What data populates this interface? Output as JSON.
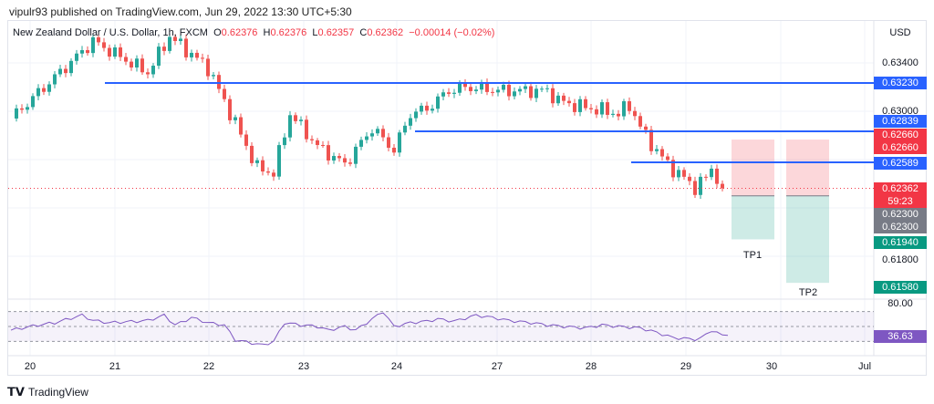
{
  "header": {
    "published": "vipulr93 published on TradingView.com, Jun 29, 2022 13:30 UTC+5:30"
  },
  "legend": {
    "symbol": "New Zealand Dollar / U.S. Dollar, 1h, FXCM",
    "o_label": "O",
    "o": "0.62376",
    "h_label": "H",
    "h": "0.62376",
    "l_label": "L",
    "l": "0.62357",
    "c_label": "C",
    "c": "0.62362",
    "change": "−0.00014 (−0.02%)"
  },
  "axis": {
    "currency": "USD",
    "ticks": [
      "0.63400",
      "0.63000",
      "0.61800"
    ],
    "rsi_tick": "80.00"
  },
  "tags": {
    "r1": "0.63230",
    "r2": "0.62839",
    "r3a": "0.62660",
    "r3b": "0.62660",
    "r4": "0.62589",
    "price": "0.62362",
    "countdown": "59:23",
    "e1": "0.62300",
    "e2": "0.62300",
    "tp1": "0.61940",
    "tp2": "0.61580",
    "rsi": "36.63"
  },
  "annotations": {
    "tp1": "TP1",
    "tp2": "TP2"
  },
  "footer": {
    "brand": "TradingView"
  },
  "colors": {
    "up": "#26a69a",
    "down": "#ef5350",
    "level": "#2962ff",
    "rsi": "#7e57c2"
  },
  "chart_data": {
    "type": "candlestick",
    "title": "New Zealand Dollar / U.S. Dollar, 1h, FXCM",
    "x_ticks": [
      "20",
      "21",
      "22",
      "23",
      "24",
      "27",
      "28",
      "29",
      "30",
      "Jul"
    ],
    "ylim": [
      0.615,
      0.6375
    ],
    "levels": [
      0.6323,
      0.62839,
      0.62589
    ],
    "positions": [
      {
        "entry": 0.623,
        "stop": 0.6266,
        "target": 0.6194,
        "label": "TP1"
      },
      {
        "entry": 0.623,
        "stop": 0.6266,
        "target": 0.6158,
        "label": "TP2"
      }
    ],
    "price_path": [
      [
        0,
        0.6294
      ],
      [
        15,
        0.6358
      ],
      [
        25,
        0.6332
      ],
      [
        29,
        0.6362
      ],
      [
        36,
        0.6336
      ],
      [
        45,
        0.6253
      ],
      [
        48,
        0.6249
      ],
      [
        51,
        0.6298
      ],
      [
        56,
        0.6271
      ],
      [
        61,
        0.6256
      ],
      [
        66,
        0.6286
      ],
      [
        70,
        0.6268
      ],
      [
        73,
        0.6298
      ],
      [
        76,
        0.6302
      ],
      [
        80,
        0.6317
      ],
      [
        83,
        0.632
      ],
      [
        90,
        0.6317
      ],
      [
        98,
        0.6317
      ],
      [
        100,
        0.6309
      ],
      [
        103,
        0.6305
      ],
      [
        111,
        0.6298
      ],
      [
        113,
        0.6305
      ],
      [
        116,
        0.6279
      ],
      [
        120,
        0.6256
      ],
      [
        125,
        0.6237
      ],
      [
        127,
        0.6245
      ],
      [
        128,
        0.6253
      ],
      [
        130,
        0.62362
      ]
    ],
    "rsi": {
      "value": 36.63,
      "levels": [
        70,
        50,
        30
      ],
      "path": [
        [
          0,
          45
        ],
        [
          5,
          52
        ],
        [
          8,
          55
        ],
        [
          13,
          65
        ],
        [
          15,
          58
        ],
        [
          18,
          55
        ],
        [
          23,
          57
        ],
        [
          25,
          58
        ],
        [
          28,
          65
        ],
        [
          30,
          52
        ],
        [
          31,
          55
        ],
        [
          33,
          62
        ],
        [
          36,
          55
        ],
        [
          39,
          52
        ],
        [
          41,
          32
        ],
        [
          44,
          28
        ],
        [
          46,
          25
        ],
        [
          48,
          30
        ],
        [
          50,
          55
        ],
        [
          53,
          52
        ],
        [
          56,
          50
        ],
        [
          58,
          45
        ],
        [
          61,
          50
        ],
        [
          63,
          45
        ],
        [
          66,
          60
        ],
        [
          68,
          70
        ],
        [
          70,
          50
        ],
        [
          73,
          55
        ],
        [
          76,
          57
        ],
        [
          78,
          60
        ],
        [
          81,
          57
        ],
        [
          85,
          65
        ],
        [
          88,
          62
        ],
        [
          91,
          58
        ],
        [
          95,
          55
        ],
        [
          98,
          52
        ],
        [
          101,
          50
        ],
        [
          105,
          48
        ],
        [
          108,
          52
        ],
        [
          111,
          50
        ],
        [
          115,
          48
        ],
        [
          118,
          42
        ],
        [
          121,
          35
        ],
        [
          125,
          33
        ],
        [
          126,
          34
        ],
        [
          128,
          45
        ],
        [
          130,
          38
        ],
        [
          131,
          40
        ]
      ]
    }
  }
}
